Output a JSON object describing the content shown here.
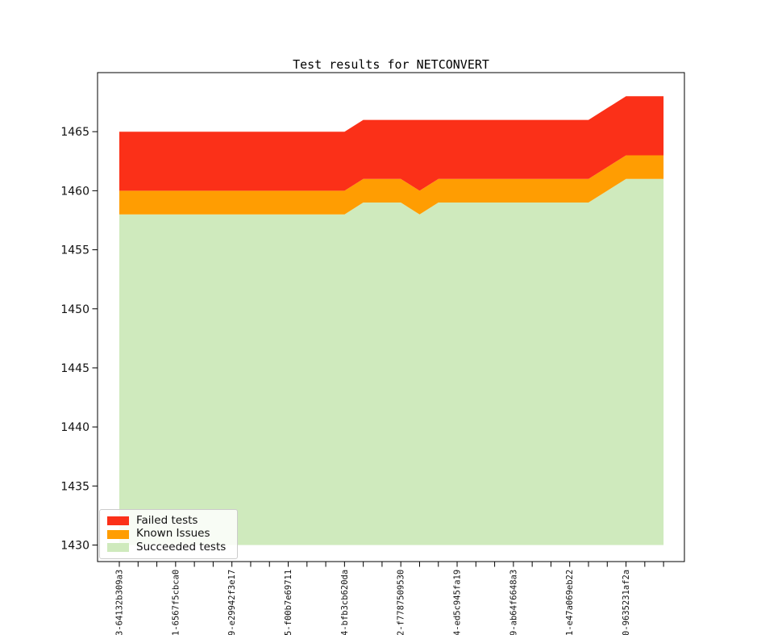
{
  "chart_data": {
    "type": "area",
    "stacked": true,
    "title": "Test results for NETCONVERT",
    "baseline": 1430,
    "ylim": [
      1428.6,
      1470.0
    ],
    "yticks": [
      1430,
      1435,
      1440,
      1445,
      1450,
      1455,
      1460,
      1465
    ],
    "grid": false,
    "n_points": 30,
    "x_label_every": 3,
    "x_tick_labels": [
      "3-64132b309a3",
      "1-6567f5cbca0",
      "9-e29942f3e17",
      "5-f00b7e69711",
      "4-bfb3cb620da",
      "2-f7787509530",
      "4-ed5c945fa19",
      "9-ab64f6648a3",
      "1-e47a069eb22",
      "0-9635231af2a"
    ],
    "legend_position": "lower left",
    "series": [
      {
        "name": "Succeeded tests",
        "color": "#cfeabd",
        "values": [
          1458,
          1458,
          1458,
          1458,
          1458,
          1458,
          1458,
          1458,
          1458,
          1458,
          1458,
          1458,
          1458,
          1459,
          1459,
          1459,
          1458,
          1459,
          1459,
          1459,
          1459,
          1459,
          1459,
          1459,
          1459,
          1459,
          1460,
          1461,
          1461,
          1461
        ]
      },
      {
        "name": "Known Issues",
        "color": "#ff9d02",
        "values": [
          2,
          2,
          2,
          2,
          2,
          2,
          2,
          2,
          2,
          2,
          2,
          2,
          2,
          2,
          2,
          2,
          2,
          2,
          2,
          2,
          2,
          2,
          2,
          2,
          2,
          2,
          2,
          2,
          2,
          2
        ]
      },
      {
        "name": "Failed tests",
        "color": "#fb3018",
        "values": [
          5,
          5,
          5,
          5,
          5,
          5,
          5,
          5,
          5,
          5,
          5,
          5,
          5,
          5,
          5,
          5,
          6,
          5,
          5,
          5,
          5,
          5,
          5,
          5,
          5,
          5,
          5,
          5,
          5,
          5
        ]
      }
    ]
  },
  "legend": {
    "items": [
      {
        "label": "Failed tests",
        "color": "#fb3018"
      },
      {
        "label": "Known Issues",
        "color": "#ff9d02"
      },
      {
        "label": "Succeeded tests",
        "color": "#cfeabd"
      }
    ]
  }
}
